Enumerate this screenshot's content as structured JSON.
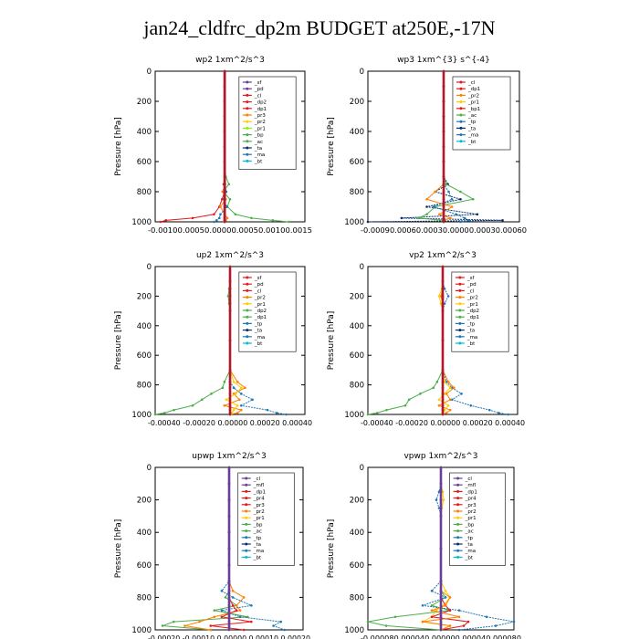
{
  "page": {
    "title": "jan24_cldfrc_dp2m  BUDGET at250E,-17N"
  },
  "styles": {
    "colors": {
      "axis": "#000000",
      "red": "#e41a1c",
      "dark_red": "#b2182b",
      "purple": "#6a3d9a",
      "orange": "#ff7f00",
      "yellow": "#ffcc00",
      "green": "#4daf4a",
      "lime": "#7cfc00",
      "blue": "#1f78b4",
      "navy": "#08306b",
      "cyan": "#00bcd4",
      "magenta": "#c51b8a"
    }
  },
  "chart_data": [
    {
      "type": "line",
      "title": "wp2   1xm^2/s^3",
      "ylabel": "Pressure  [hPa]",
      "xlim": [
        -0.0013,
        0.0015
      ],
      "ylim": [
        0,
        1000
      ],
      "y_inverted": true,
      "xtick_text": "-0.00100.00050.00000.00050.00100.0015",
      "yticks": [
        0,
        200,
        400,
        600,
        800,
        1000
      ],
      "legend": [
        "_sf",
        "_pd",
        "_cl",
        "_dp2",
        "_dp1",
        "_pr3",
        "_pr2",
        "_pr1",
        "_bp",
        "_ac",
        "_ta",
        "_ma",
        "_bt"
      ],
      "legend_colors": [
        "purple",
        "purple",
        "red",
        "red",
        "red",
        "orange",
        "yellow",
        "lime",
        "green",
        "green",
        "navy",
        "blue",
        "cyan"
      ],
      "y": [
        0,
        100,
        200,
        300,
        400,
        500,
        600,
        700,
        750,
        800,
        850,
        900,
        950,
        975,
        990,
        1000
      ],
      "series": [
        {
          "color": "green",
          "values": [
            0,
            0,
            0,
            0,
            0,
            0,
            0,
            2e-05,
            8e-05,
            -3e-05,
            0.0001,
            5e-05,
            0.0002,
            0.0005,
            0.0009,
            0.0012
          ]
        },
        {
          "color": "red",
          "values": [
            0,
            0,
            0,
            0,
            0,
            0,
            0,
            0,
            -2e-05,
            0,
            -5e-05,
            -0.0001,
            -0.0002,
            -0.0006,
            -0.0011,
            -0.0012
          ]
        },
        {
          "color": "orange",
          "values": [
            0,
            0,
            0,
            0,
            0,
            0,
            0,
            0,
            1e-05,
            -4e-05,
            2e-05,
            -8e-05,
            0,
            5e-05,
            2e-05,
            0
          ]
        },
        {
          "color": "blue",
          "values": [
            0,
            0,
            0,
            0,
            0,
            0,
            0,
            0,
            0,
            3e-05,
            -2e-05,
            4e-05,
            -8e-05,
            -0.0001,
            -0.00015,
            -0.0002
          ]
        },
        {
          "color": "purple",
          "values": [
            0,
            0,
            0,
            0,
            0,
            0,
            0,
            0,
            0,
            0,
            0,
            0,
            0,
            0,
            0,
            0
          ]
        },
        {
          "color": "dark_red",
          "values": [
            0,
            0,
            0,
            0,
            0,
            0,
            0,
            0,
            0,
            0,
            0,
            0,
            0,
            0,
            0,
            0
          ]
        }
      ]
    },
    {
      "type": "line",
      "title": "wp3   1xm^{3} s^{-4}",
      "ylabel": "Pressure  [hPa]",
      "xlim": [
        -0.0009,
        0.0009
      ],
      "ylim": [
        0,
        1000
      ],
      "y_inverted": true,
      "xtick_text": "-0.00090.00060.00030.00000.00030.00060",
      "yticks": [
        0,
        200,
        400,
        600,
        800,
        1000
      ],
      "legend": [
        "_cl",
        "_dp1",
        "_pr2",
        "_pr1",
        "_bp1",
        "_ac",
        "_tp",
        "_ta",
        "_ma",
        "_bt"
      ],
      "legend_colors": [
        "red",
        "red",
        "orange",
        "yellow",
        "red",
        "green",
        "blue",
        "navy",
        "blue",
        "cyan"
      ],
      "y": [
        0,
        100,
        200,
        300,
        400,
        500,
        600,
        700,
        750,
        800,
        850,
        900,
        950,
        975,
        990,
        1000
      ],
      "series": [
        {
          "color": "navy",
          "values": [
            0,
            0,
            0,
            0,
            0,
            0,
            0,
            0,
            5e-05,
            -0.0001,
            0.0002,
            -0.0002,
            0.0004,
            -0.0005,
            0.0007,
            -0.0009
          ]
        },
        {
          "color": "green",
          "values": [
            0,
            0,
            0,
            0,
            0,
            0,
            0,
            0,
            3e-05,
            0.0002,
            0.00035,
            -0.0001,
            -0.0002,
            -0.0003,
            0,
            0
          ]
        },
        {
          "color": "orange",
          "values": [
            0,
            0,
            0,
            0,
            0,
            0,
            0,
            0,
            0,
            -0.0001,
            -0.0002,
            0.0001,
            -5e-05,
            8e-05,
            0,
            0
          ]
        },
        {
          "color": "blue",
          "values": [
            0,
            0,
            0,
            0,
            0,
            0,
            0,
            0,
            0,
            6e-05,
            0.0001,
            -0.00012,
            0.00015,
            0.00025,
            0.0003,
            0.0002
          ]
        },
        {
          "color": "dark_red",
          "values": [
            0,
            0,
            0,
            0,
            0,
            0,
            0,
            0,
            0,
            0,
            0,
            0,
            0,
            0,
            0,
            0
          ]
        }
      ]
    },
    {
      "type": "line",
      "title": "up2   1xm^2/s^3",
      "ylabel": "Pressure  [hPa]",
      "xlim": [
        -0.0004,
        0.0004
      ],
      "ylim": [
        0,
        1000
      ],
      "y_inverted": true,
      "xtick_text": "-0.00040 -0.00020  0.00000  0.00020  0.00040",
      "yticks": [
        0,
        200,
        400,
        600,
        800,
        1000
      ],
      "legend": [
        "_sf",
        "_pd",
        "_cl",
        "_pr2",
        "_pr1",
        "_dp2",
        "_dp1",
        "_tp",
        "_ta",
        "_ma",
        "_bt"
      ],
      "legend_colors": [
        "red",
        "red",
        "red",
        "orange",
        "yellow",
        "green",
        "green",
        "blue",
        "navy",
        "blue",
        "cyan"
      ],
      "y": [
        0,
        100,
        150,
        200,
        250,
        300,
        500,
        700,
        780,
        820,
        860,
        900,
        940,
        970,
        990,
        1000
      ],
      "series": [
        {
          "color": "green",
          "values": [
            0,
            0,
            -5e-06,
            -1e-05,
            -5e-06,
            0,
            0,
            0,
            -3e-05,
            -4e-05,
            -0.0001,
            -0.00015,
            -0.0002,
            -0.0003,
            -0.00035,
            -0.0004
          ]
        },
        {
          "color": "orange",
          "values": [
            0,
            0,
            0,
            0,
            0,
            0,
            0,
            0,
            4e-05,
            8e-05,
            2e-05,
            5e-05,
            -3e-05,
            6e-05,
            4e-05,
            0
          ]
        },
        {
          "color": "blue",
          "values": [
            0,
            0,
            0,
            0,
            0,
            0,
            0,
            0,
            0,
            2e-05,
            6e-05,
            0.00012,
            6e-05,
            0.0002,
            0.00025,
            0.0003
          ]
        },
        {
          "color": "yellow",
          "values": [
            0,
            0,
            0,
            0,
            0,
            0,
            0,
            0,
            2e-05,
            6e-05,
            3e-05,
            -2e-05,
            4e-05,
            2e-05,
            1e-05,
            0
          ]
        },
        {
          "color": "dark_red",
          "values": [
            0,
            0,
            0,
            0,
            0,
            0,
            0,
            0,
            0,
            0,
            0,
            0,
            0,
            0,
            0,
            0
          ]
        }
      ]
    },
    {
      "type": "line",
      "title": "vp2   1xm^2/s^3",
      "ylabel": "Pressure  [hPa]",
      "xlim": [
        -0.0004,
        0.0004
      ],
      "ylim": [
        0,
        1000
      ],
      "y_inverted": true,
      "xtick_text": "-0.00040 -0.00020  0.00000  0.00020  0.00040",
      "yticks": [
        0,
        200,
        400,
        600,
        800,
        1000
      ],
      "legend": [
        "_sf",
        "_pd",
        "_cl",
        "_pr2",
        "_pr1",
        "_dp2",
        "_dp1",
        "_tp",
        "_ta",
        "_ma",
        "_bt"
      ],
      "legend_colors": [
        "red",
        "red",
        "red",
        "orange",
        "yellow",
        "green",
        "green",
        "blue",
        "navy",
        "blue",
        "cyan"
      ],
      "y": [
        0,
        100,
        150,
        200,
        250,
        300,
        500,
        700,
        780,
        820,
        860,
        900,
        940,
        970,
        990,
        1000
      ],
      "series": [
        {
          "color": "green",
          "values": [
            0,
            0,
            0,
            0,
            0,
            0,
            0,
            0,
            -3e-05,
            -5e-05,
            -0.00012,
            -0.00018,
            -0.0002,
            -0.0003,
            -0.00035,
            -0.0004
          ]
        },
        {
          "color": "blue",
          "values": [
            0,
            0,
            1e-05,
            3e-05,
            1e-05,
            0,
            0,
            0,
            2e-05,
            5e-05,
            0.0001,
            5e-05,
            0.00015,
            0.00025,
            0.0003,
            0.00035
          ]
        },
        {
          "color": "orange",
          "values": [
            0,
            0,
            0,
            -1e-05,
            0,
            0,
            0,
            0,
            3e-05,
            6e-05,
            2e-05,
            4e-05,
            -2e-05,
            4e-05,
            2e-05,
            0
          ]
        },
        {
          "color": "yellow",
          "values": [
            0,
            0,
            -5e-06,
            -2e-05,
            -1e-05,
            0,
            0,
            0,
            1e-05,
            4e-05,
            1e-05,
            -2e-05,
            3e-05,
            1e-05,
            0,
            0
          ]
        },
        {
          "color": "dark_red",
          "values": [
            0,
            0,
            0,
            0,
            0,
            0,
            0,
            0,
            0,
            0,
            0,
            0,
            0,
            0,
            0,
            0
          ]
        }
      ]
    },
    {
      "type": "line",
      "title": "upwp   1xm^2/s^3",
      "ylabel": "Pressure  [hPa]",
      "xlim": [
        -0.0002,
        0.0002
      ],
      "ylim": [
        0,
        1000
      ],
      "y_inverted": true,
      "xtick_text": "-0.00020 -0.00010  0.00000  0.00010  0.00020",
      "yticks": [
        0,
        200,
        400,
        600,
        800,
        1000
      ],
      "legend": [
        "_cl",
        "_mfl",
        "_dp1",
        "_pr4",
        "_pr3",
        "_pr2",
        "_pr1",
        "_bp",
        "_ac",
        "_tp",
        "_ta",
        "_ma",
        "_bt"
      ],
      "legend_colors": [
        "purple",
        "purple",
        "red",
        "red",
        "red",
        "orange",
        "yellow",
        "green",
        "green",
        "blue",
        "navy",
        "blue",
        "cyan"
      ],
      "y": [
        0,
        100,
        200,
        300,
        400,
        500,
        600,
        700,
        760,
        800,
        850,
        880,
        920,
        950,
        975,
        1000
      ],
      "series": [
        {
          "color": "green",
          "values": [
            0,
            0,
            0,
            0,
            0,
            0,
            0,
            0,
            0,
            -1e-05,
            2e-05,
            -4e-05,
            5e-05,
            -0.00015,
            -0.00018,
            -5e-05
          ]
        },
        {
          "color": "orange",
          "values": [
            0,
            0,
            0,
            0,
            0,
            0,
            0,
            0,
            1e-05,
            4e-05,
            2e-05,
            3e-05,
            -4e-05,
            -8e-05,
            -0.00012,
            -5e-05
          ]
        },
        {
          "color": "blue",
          "values": [
            0,
            0,
            0,
            0,
            0,
            0,
            0,
            0,
            -2e-05,
            1e-05,
            6e-05,
            -2e-05,
            3e-05,
            0.00014,
            0.00012,
            0.00015
          ]
        },
        {
          "color": "red",
          "values": [
            0,
            0,
            0,
            0,
            0,
            0,
            0,
            0,
            0,
            0,
            1e-05,
            2e-05,
            -2e-05,
            6e-05,
            -5e-05,
            4e-05
          ]
        },
        {
          "color": "purple",
          "values": [
            0,
            0,
            0,
            0,
            0,
            0,
            0,
            0,
            0,
            0,
            0,
            0,
            0,
            0,
            0,
            0
          ]
        }
      ]
    },
    {
      "type": "line",
      "title": "vpwp   1xm^2/s^3",
      "ylabel": "Pressure  [hPa]",
      "xlim": [
        -8e-05,
        8e-05
      ],
      "ylim": [
        0,
        1000
      ],
      "y_inverted": true,
      "xtick_text": "-0.000080.000040.000000.000040.000080",
      "yticks": [
        0,
        200,
        400,
        600,
        800,
        1000
      ],
      "legend": [
        "_cl",
        "_mfl",
        "_dp1",
        "_pr4",
        "_pr3",
        "_pr2",
        "_pr1",
        "_bp",
        "_ac",
        "_tp",
        "_ta",
        "_ma",
        "_bt"
      ],
      "legend_colors": [
        "purple",
        "purple",
        "red",
        "red",
        "red",
        "orange",
        "yellow",
        "green",
        "green",
        "blue",
        "navy",
        "blue",
        "cyan"
      ],
      "y": [
        0,
        100,
        150,
        200,
        250,
        300,
        500,
        700,
        760,
        800,
        850,
        880,
        920,
        950,
        975,
        1000
      ],
      "series": [
        {
          "color": "green",
          "values": [
            0,
            0,
            0,
            0,
            0,
            0,
            0,
            0,
            0,
            5e-06,
            -1e-05,
            1e-05,
            -5e-05,
            -8e-05,
            -6e-05,
            0
          ]
        },
        {
          "color": "blue",
          "values": [
            0,
            0,
            -2e-06,
            -5e-06,
            -2e-06,
            0,
            0,
            0,
            -1e-05,
            5e-06,
            -2e-05,
            2e-05,
            5e-05,
            8e-05,
            6e-05,
            2e-05
          ]
        },
        {
          "color": "yellow",
          "values": [
            0,
            0,
            2e-06,
            3e-06,
            1e-06,
            0,
            0,
            0,
            5e-06,
            1e-05,
            3e-06,
            -5e-06,
            -1e-05,
            -2e-05,
            1e-05,
            0
          ]
        },
        {
          "color": "red",
          "values": [
            0,
            0,
            0,
            0,
            0,
            0,
            0,
            0,
            0,
            0,
            5e-06,
            1e-05,
            -1e-05,
            3e-05,
            2.5e-05,
            0
          ]
        },
        {
          "color": "orange",
          "values": [
            0,
            0,
            0,
            0,
            0,
            0,
            0,
            0,
            0,
            1e-05,
            5e-06,
            -1e-05,
            2e-05,
            -2e-05,
            1e-05,
            0
          ]
        },
        {
          "color": "purple",
          "values": [
            0,
            0,
            0,
            0,
            0,
            0,
            0,
            0,
            0,
            0,
            0,
            0,
            0,
            0,
            0,
            0
          ]
        }
      ]
    }
  ]
}
